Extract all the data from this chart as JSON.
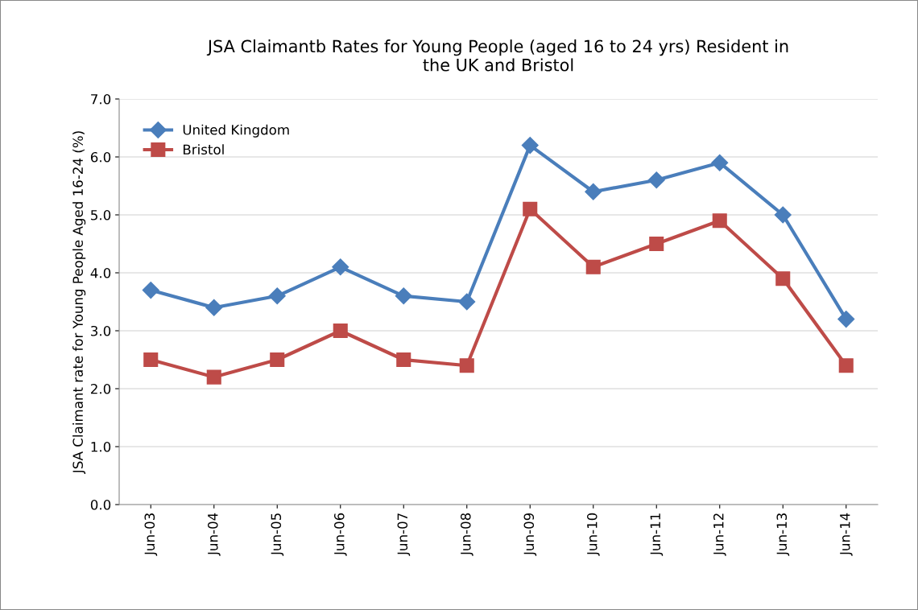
{
  "chart_data": {
    "type": "line",
    "title": "JSA Claimantb Rates for Young People (aged 16 to 24 yrs) Resident in\nthe UK and Bristol",
    "ylabel": "JSA Claimant rate for Young People Aged 16-24 (%)",
    "categories": [
      "Jun-03",
      "Jun-04",
      "Jun-05",
      "Jun-06",
      "Jun-07",
      "Jun-08",
      "Jun-09",
      "Jun-10",
      "Jun-11",
      "Jun-12",
      "Jun-13",
      "Jun-14"
    ],
    "series": [
      {
        "name": "United Kingdom",
        "color": "#4a7ebb",
        "marker": "diamond",
        "values": [
          3.7,
          3.4,
          3.6,
          4.1,
          3.6,
          3.5,
          6.2,
          5.4,
          5.6,
          5.9,
          5.0,
          3.2
        ]
      },
      {
        "name": "Bristol",
        "color": "#be4b48",
        "marker": "square",
        "values": [
          2.5,
          2.2,
          2.5,
          3.0,
          2.5,
          2.4,
          5.1,
          4.1,
          4.5,
          4.9,
          3.9,
          2.4
        ]
      }
    ],
    "ylim": [
      0,
      7
    ],
    "yticks": [
      {
        "value": 0,
        "label": "0.0"
      },
      {
        "value": 1,
        "label": "1.0"
      },
      {
        "value": 2,
        "label": "2.0"
      },
      {
        "value": 3,
        "label": "3.0"
      },
      {
        "value": 4,
        "label": "4.0"
      },
      {
        "value": 5,
        "label": "5.0"
      },
      {
        "value": 6,
        "label": "6.0"
      },
      {
        "value": 7,
        "label": "7.0"
      }
    ],
    "grid": "y",
    "legend": "top left",
    "line_style": "solid"
  }
}
